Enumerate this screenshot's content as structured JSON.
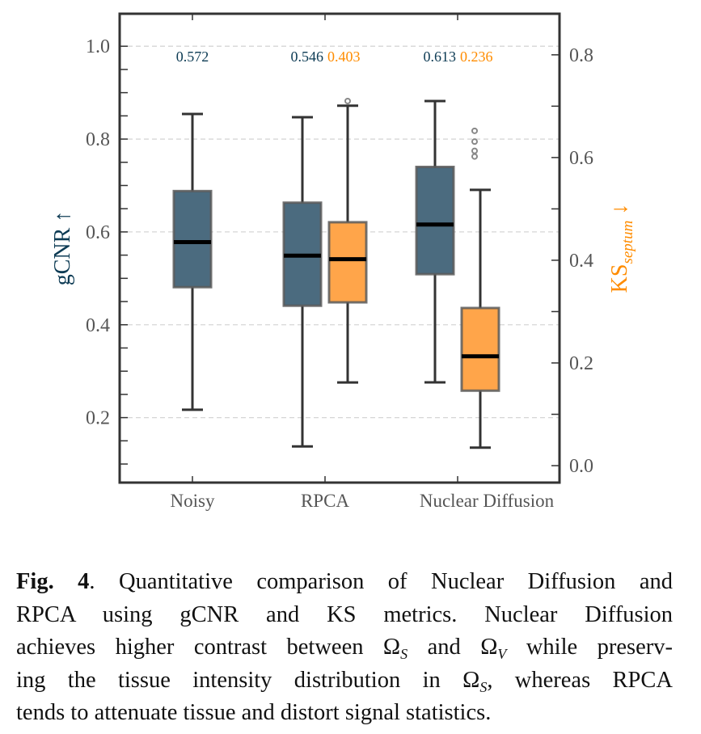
{
  "chart_data": {
    "type": "box",
    "categories": [
      "Noisy",
      "RPCA",
      "Nuclear Diffusion"
    ],
    "left_axis": {
      "label": "gCNR",
      "label_arrow": "↑",
      "ylim": [
        0.06,
        1.07
      ],
      "ticks": [
        0.2,
        0.4,
        0.6,
        0.8,
        1.0
      ],
      "tick_labels": [
        "0.2",
        "0.4",
        "0.6",
        "0.8",
        "1.0"
      ],
      "color": "#0d3b54"
    },
    "right_axis": {
      "label": "KS",
      "label_subscript": "septum",
      "label_arrow": "↓",
      "ylim": [
        -0.033,
        0.88
      ],
      "ticks": [
        0.0,
        0.2,
        0.4,
        0.6,
        0.8
      ],
      "tick_labels": [
        "0.0",
        "0.2",
        "0.4",
        "0.6",
        "0.8"
      ],
      "color": "#ff8c00"
    },
    "grid": "horizontal dashed (left axis)",
    "series": [
      {
        "name": "gCNR",
        "axis": "left",
        "fill": "#4b6b7f",
        "boxes": [
          {
            "category": "Noisy",
            "whisker_low": 0.217,
            "q1": 0.481,
            "median": 0.578,
            "q3": 0.688,
            "whisker_high": 0.854,
            "outliers": []
          },
          {
            "category": "RPCA",
            "whisker_low": 0.138,
            "q1": 0.441,
            "median": 0.549,
            "q3": 0.663,
            "whisker_high": 0.847,
            "outliers": []
          },
          {
            "category": "Nuclear Diffusion",
            "whisker_low": 0.276,
            "q1": 0.509,
            "median": 0.616,
            "q3": 0.74,
            "whisker_high": 0.882,
            "outliers": []
          }
        ]
      },
      {
        "name": "KS_septum",
        "axis": "right",
        "fill": "#ffa54a",
        "boxes": [
          {
            "category": "RPCA",
            "whisker_low": 0.162,
            "q1": 0.318,
            "median": 0.402,
            "q3": 0.474,
            "whisker_high": 0.701,
            "outliers": [
              0.71
            ]
          },
          {
            "category": "Nuclear Diffusion",
            "whisker_low": 0.035,
            "q1": 0.146,
            "median": 0.213,
            "q3": 0.307,
            "whisker_high": 0.537,
            "outliers": [
              0.652,
              0.631,
              0.613,
              0.602
            ]
          }
        ]
      }
    ],
    "annotations": [
      {
        "category": "Noisy",
        "gcnr": "0.572",
        "ks": null
      },
      {
        "category": "RPCA",
        "gcnr": "0.546",
        "ks": "0.403"
      },
      {
        "category": "Nuclear Diffusion",
        "gcnr": "0.613",
        "ks": "0.236"
      }
    ]
  },
  "caption": {
    "fig_label": "Fig. 4",
    "lines": [
      ". Quantitative comparison of Nuclear Diffusion and",
      "RPCA using gCNR and KS metrics.  Nuclear Diffusion",
      "achieves higher contrast between Ω",
      "ing the tissue intensity distribution in Ω",
      "tends to attenuate tissue and distort signal statistics."
    ],
    "line3_sub1": "S",
    "line3_mid": " and Ω",
    "line3_sub2": "V",
    "line3_end": " while preserv-",
    "line4_sub": "S",
    "line4_end": ", whereas RPCA"
  }
}
